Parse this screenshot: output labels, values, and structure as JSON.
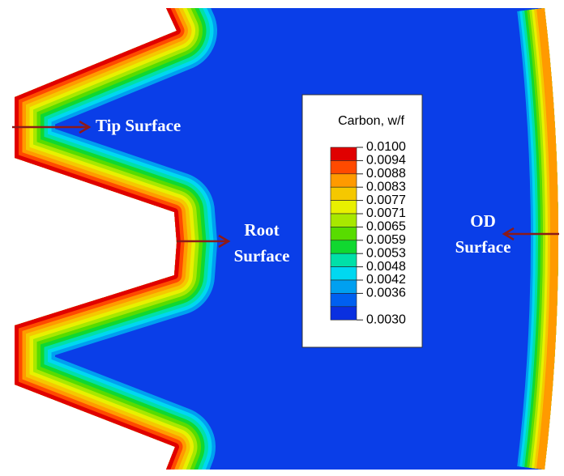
{
  "legend": {
    "title": "Carbon, w/f",
    "labels": [
      "0.0100",
      "0.0094",
      "0.0088",
      "0.0083",
      "0.0077",
      "0.0071",
      "0.0065",
      "0.0059",
      "0.0053",
      "0.0048",
      "0.0042",
      "0.0036",
      "0.0030"
    ],
    "colors": [
      "#e00000",
      "#ff4a00",
      "#ff9a00",
      "#f5c800",
      "#e8f000",
      "#a8e800",
      "#58dc00",
      "#10d830",
      "#00e0a8",
      "#00d8f0",
      "#00a0f0",
      "#0060f0",
      "#0a30e0"
    ]
  },
  "annotations": {
    "tip": "Tip Surface",
    "root": [
      "Root",
      "Surface"
    ],
    "od": [
      "OD",
      "Surface"
    ]
  }
}
